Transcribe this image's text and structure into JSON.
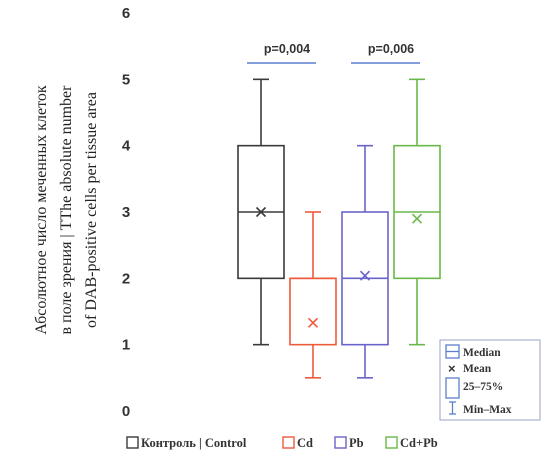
{
  "chart_data": {
    "type": "box",
    "ylabel_line1": "Абсолютное число меченных клеток",
    "ylabel_line2": "в поле зрения | TThe absolute number",
    "ylabel_line3": "of DAB-positive cells per tissue area",
    "ylim": [
      0,
      6
    ],
    "yticks": [
      0,
      1,
      2,
      3,
      4,
      5,
      6
    ],
    "grid": false,
    "groups": [
      {
        "name": "Контроль | Control",
        "color": "#3a3a3a",
        "min": 1,
        "q1": 2,
        "median": 3,
        "q3": 4,
        "max": 5,
        "mean": 3.0
      },
      {
        "name": "Cd",
        "color": "#ee5a3c",
        "min": 0.5,
        "q1": 1,
        "median": 2,
        "q3": 2,
        "max": 3,
        "mean": 1.33
      },
      {
        "name": "Pb",
        "color": "#6a64c8",
        "min": 0.5,
        "q1": 1,
        "median": 2,
        "q3": 3,
        "max": 4,
        "mean": 2.04
      },
      {
        "name": "Cd+Pb",
        "color": "#6ab84a",
        "min": 1,
        "q1": 2,
        "median": 3,
        "q3": 4,
        "max": 5,
        "mean": 2.9
      }
    ],
    "annotations": [
      {
        "text": "p=0,004",
        "groups": [
          0,
          1
        ],
        "color": "#5b7fd0"
      },
      {
        "text": "p=0,006",
        "groups": [
          2,
          3
        ],
        "color": "#5b7fd0"
      }
    ],
    "inner_legend": [
      "Median",
      "Mean",
      "25–75%",
      "Min–Max"
    ],
    "inner_legend_color": "#5b7fd0"
  }
}
